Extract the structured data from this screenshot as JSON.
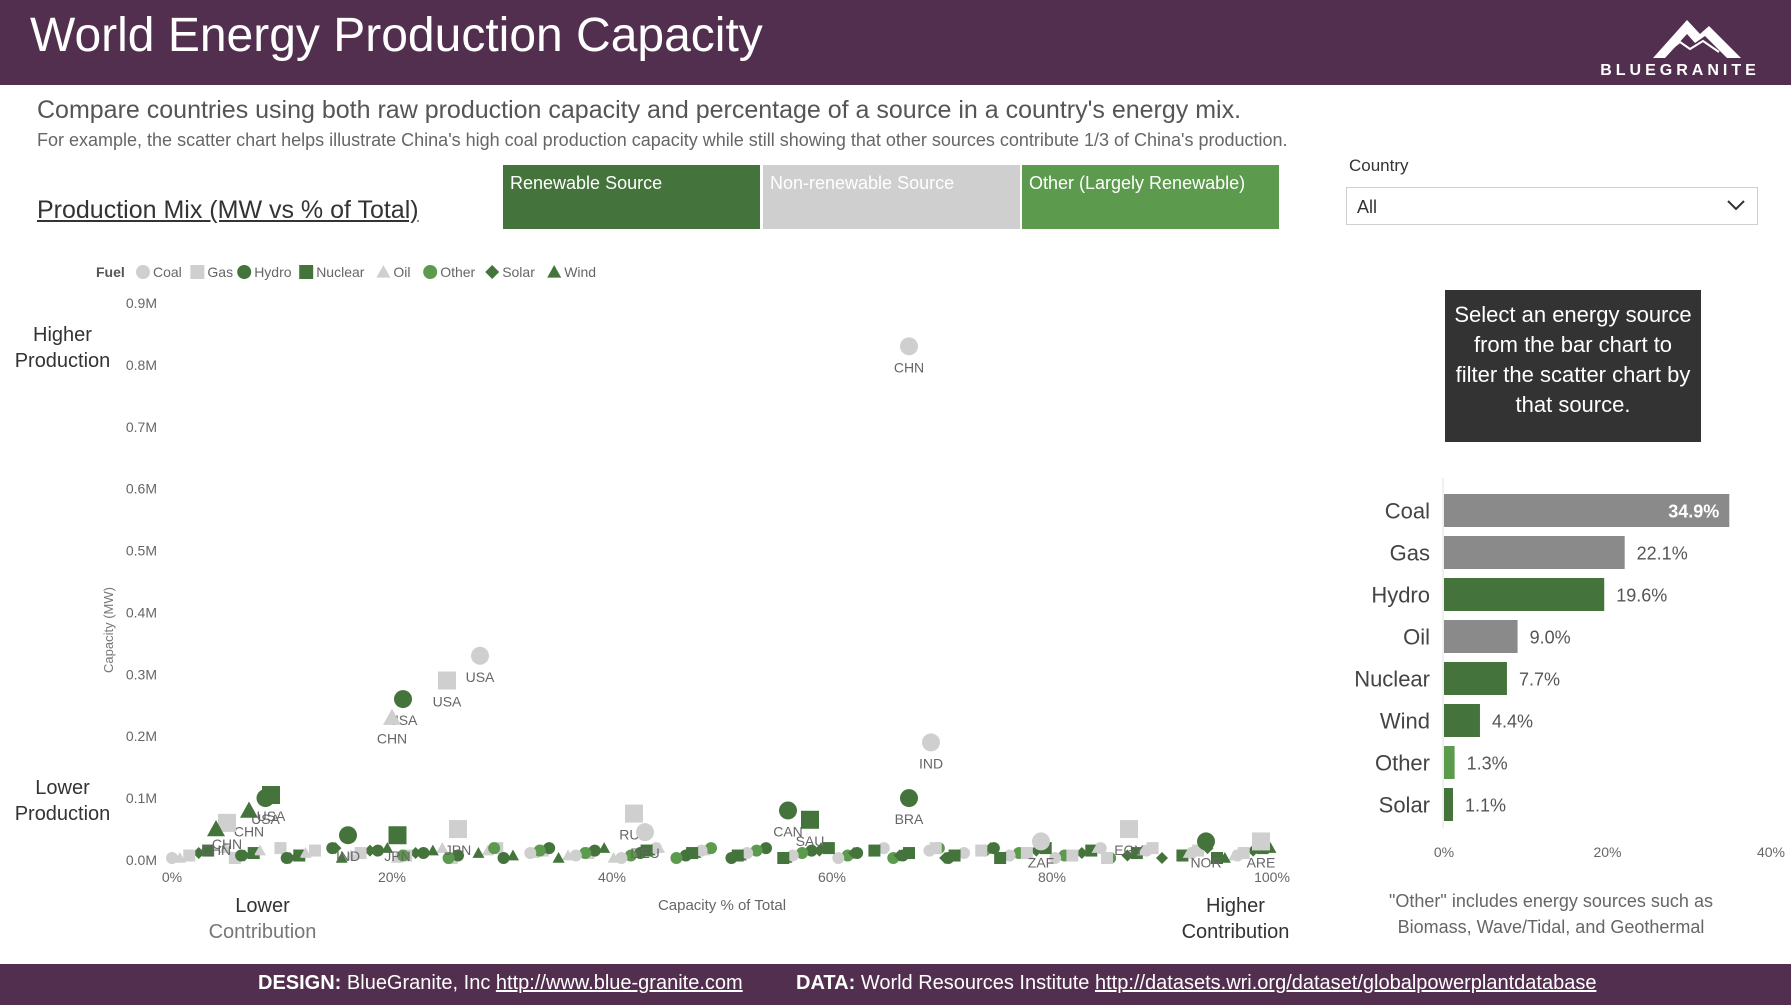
{
  "header": {
    "title": "World Energy Production Capacity",
    "logo_text": "BLUEGRANITE"
  },
  "intro": {
    "subtitle": "Compare countries using both raw production capacity and percentage of a source in a country's energy mix.",
    "subtext": "For example, the scatter chart helps illustrate China's high coal production capacity while still showing that other sources contribute 1/3 of China's production."
  },
  "section_title": "Production Mix (MW vs % of Total)",
  "legend_buttons": {
    "renewable": "Renewable Source",
    "non_renewable": "Non-renewable Source",
    "other": "Other (Largely Renewable)"
  },
  "filter": {
    "label": "Country",
    "value": "All"
  },
  "tooltip_text": "Select an energy source from the bar chart to filter the scatter chart by that source.",
  "axis_captions": {
    "higher_production": [
      "Higher",
      "Production"
    ],
    "lower_production": [
      "Lower",
      "Production"
    ],
    "lower_contribution": [
      "Lower",
      "Contribution"
    ],
    "higher_contribution": [
      "Higher",
      "Contribution"
    ]
  },
  "note": "\"Other\" includes energy sources such as Biomass, Wave/Tidal, and Geothermal",
  "footer": {
    "design_label": "DESIGN:",
    "design_text": "BlueGranite, Inc",
    "design_url": "http://www.blue-granite.com",
    "data_label": "DATA:",
    "data_text": "World Resources Institute",
    "data_url": "http://datasets.wri.org/dataset/globalpowerplantdatabase"
  },
  "colors": {
    "header": "#532f4f",
    "renewable": "#44743c",
    "non_renewable": "#cfcfcf",
    "other": "#5c9a4e",
    "grey_bar": "#8a8a8a"
  },
  "chart_data": [
    {
      "type": "scatter",
      "title": "",
      "xlabel": "Capacity % of Total",
      "ylabel": "Capacity (MW)",
      "xlim": [
        0,
        100
      ],
      "ylim": [
        0,
        0.9
      ],
      "x_ticks": [
        "0%",
        "20%",
        "40%",
        "60%",
        "80%",
        "100%"
      ],
      "y_ticks": [
        "0.0M",
        "0.1M",
        "0.2M",
        "0.3M",
        "0.4M",
        "0.5M",
        "0.6M",
        "0.7M",
        "0.8M",
        "0.9M"
      ],
      "legend_title": "Fuel",
      "legend": [
        {
          "name": "Coal",
          "color": "#cfcfcf",
          "shape": "circle"
        },
        {
          "name": "Gas",
          "color": "#cfcfcf",
          "shape": "square"
        },
        {
          "name": "Hydro",
          "color": "#44743c",
          "shape": "circle"
        },
        {
          "name": "Nuclear",
          "color": "#44743c",
          "shape": "square"
        },
        {
          "name": "Oil",
          "color": "#cfcfcf",
          "shape": "triangle"
        },
        {
          "name": "Other",
          "color": "#5c9a4e",
          "shape": "circle"
        },
        {
          "name": "Solar",
          "color": "#44743c",
          "shape": "diamond"
        },
        {
          "name": "Wind",
          "color": "#44743c",
          "shape": "triangle"
        }
      ],
      "points": [
        {
          "label": "CHN",
          "fuel": "Coal",
          "x": 67,
          "y": 0.83
        },
        {
          "label": "USA",
          "fuel": "Coal",
          "x": 28,
          "y": 0.33
        },
        {
          "label": "USA",
          "fuel": "Gas",
          "x": 25,
          "y": 0.29
        },
        {
          "label": "USA",
          "fuel": "Hydro",
          "x": 21,
          "y": 0.26
        },
        {
          "label": "CHN",
          "fuel": "Oil",
          "x": 20,
          "y": 0.23
        },
        {
          "label": "IND",
          "fuel": "Coal",
          "x": 69,
          "y": 0.19
        },
        {
          "label": "USA",
          "fuel": "Nuclear",
          "x": 9,
          "y": 0.105
        },
        {
          "label": "USA",
          "fuel": "Hydro",
          "x": 8.5,
          "y": 0.1
        },
        {
          "label": "CHN",
          "fuel": "Wind",
          "x": 7,
          "y": 0.08
        },
        {
          "label": "CHN",
          "fuel": "Gas",
          "x": 5,
          "y": 0.06
        },
        {
          "label": "CHN",
          "fuel": "Wind",
          "x": 4,
          "y": 0.05
        },
        {
          "label": "CAN",
          "fuel": "Hydro",
          "x": 56,
          "y": 0.08
        },
        {
          "label": "SAU",
          "fuel": "Nuclear",
          "x": 58,
          "y": 0.065
        },
        {
          "label": "BRA",
          "fuel": "Hydro",
          "x": 67,
          "y": 0.1
        },
        {
          "label": "RUS",
          "fuel": "Gas",
          "x": 42,
          "y": 0.075
        },
        {
          "label": "DEU",
          "fuel": "Coal",
          "x": 43,
          "y": 0.045
        },
        {
          "label": "JPN",
          "fuel": "Gas",
          "x": 26,
          "y": 0.05
        },
        {
          "label": "JPN",
          "fuel": "Nuclear",
          "x": 20.5,
          "y": 0.04
        },
        {
          "label": "IND",
          "fuel": "Hydro",
          "x": 16,
          "y": 0.04
        },
        {
          "label": "NOR",
          "fuel": "Hydro",
          "x": 94,
          "y": 0.03
        },
        {
          "label": "EGY",
          "fuel": "Gas",
          "x": 87,
          "y": 0.05
        },
        {
          "label": "ZAF",
          "fuel": "Coal",
          "x": 79,
          "y": 0.03
        },
        {
          "label": "ARE",
          "fuel": "Gas",
          "x": 99,
          "y": 0.03
        }
      ]
    },
    {
      "type": "bar",
      "orientation": "horizontal",
      "categories": [
        "Coal",
        "Gas",
        "Hydro",
        "Oil",
        "Nuclear",
        "Wind",
        "Other",
        "Solar"
      ],
      "values": [
        34.9,
        22.1,
        19.6,
        9.0,
        7.7,
        4.4,
        1.3,
        1.1
      ],
      "value_labels": [
        "34.9%",
        "22.1%",
        "19.6%",
        "9.0%",
        "7.7%",
        "4.4%",
        "1.3%",
        "1.1%"
      ],
      "colors": [
        "#8a8a8a",
        "#8a8a8a",
        "#44743c",
        "#8a8a8a",
        "#44743c",
        "#44743c",
        "#5c9a4e",
        "#44743c"
      ],
      "xlim": [
        0,
        40
      ],
      "x_ticks": [
        "0%",
        "20%",
        "40%"
      ]
    }
  ]
}
